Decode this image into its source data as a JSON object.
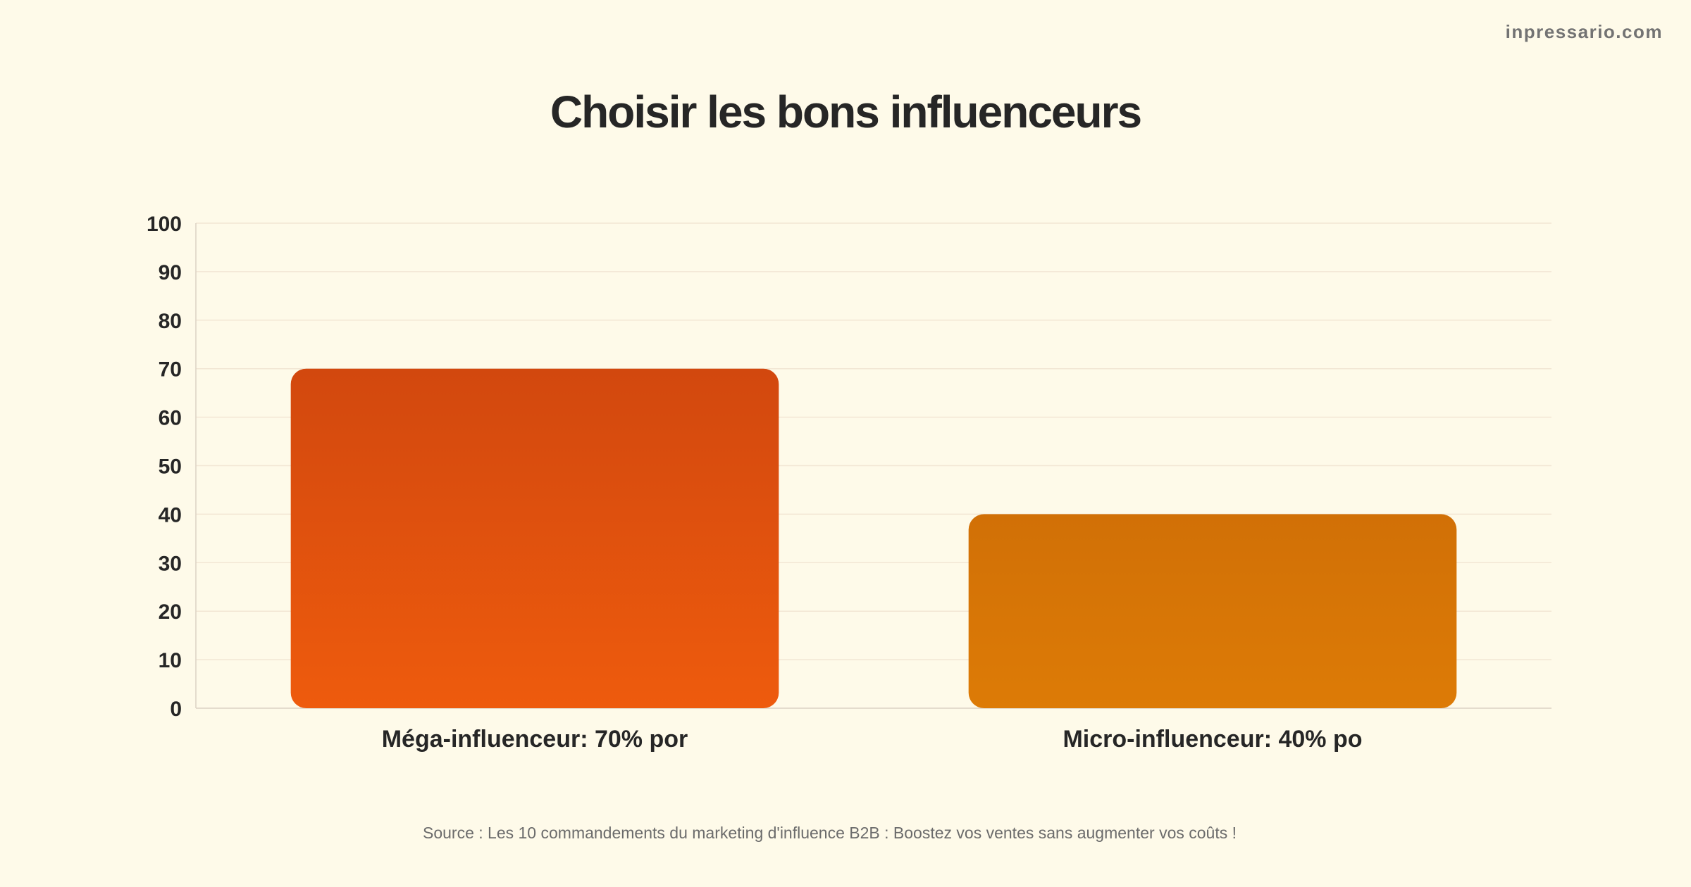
{
  "brand": "inpressario.com",
  "chart_data": {
    "type": "bar",
    "title": "Choisir les bons influenceurs",
    "categories": [
      "Méga-influenceur: 70% por",
      "Micro-influenceur: 40% po"
    ],
    "values": [
      70,
      40
    ],
    "ylim": [
      0,
      100
    ],
    "yticks": [
      0,
      10,
      20,
      30,
      40,
      50,
      60,
      70,
      80,
      90,
      100
    ],
    "xlabel": "",
    "ylabel": "",
    "grid": true,
    "legend": "none",
    "colors": [
      {
        "top": "#d2480e",
        "bottom": "#ee5b0d"
      },
      {
        "top": "#d17006",
        "bottom": "#dd7b06"
      }
    ],
    "grid_color": "#f2e6d4",
    "axis_color": "#dcd2c4"
  },
  "source": "Source : Les 10 commandements du marketing d'influence B2B : Boostez vos ventes sans augmenter vos coûts !"
}
